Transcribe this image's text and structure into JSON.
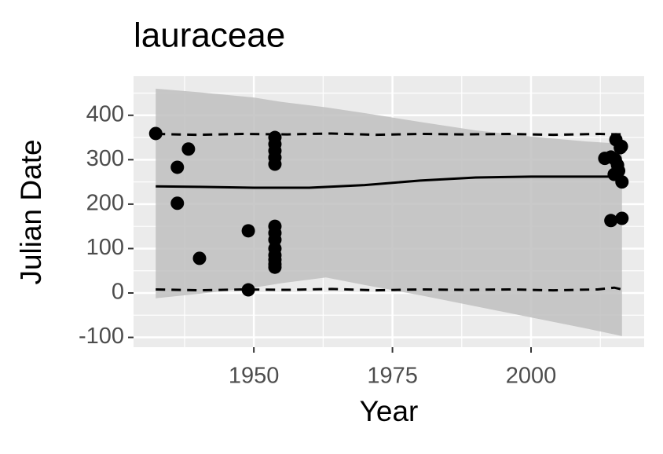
{
  "chart_data": {
    "type": "scatter",
    "title": "lauraceae",
    "x_label": "Year",
    "y_label": "Julian Date",
    "xlim": [
      1928.3,
      2020.4
    ],
    "ylim": [
      -122,
      488
    ],
    "xticks": [
      1950,
      1975,
      2000
    ],
    "yticks": [
      -100,
      0,
      100,
      200,
      300,
      400
    ],
    "xminorticks": [
      1937.5,
      1962.5,
      1987.5,
      2012.5
    ],
    "yminorticks": [
      -50,
      50,
      150,
      250,
      350,
      450
    ],
    "grid": true,
    "panel_color": "#ebebeb",
    "band": {
      "color": "#bfbfbf",
      "x": [
        1932.3,
        1940,
        1945,
        1950,
        1955,
        1963,
        1970,
        1980,
        1990,
        2000,
        2010,
        2016.4
      ],
      "lower": [
        -12,
        -2,
        5,
        12,
        22,
        35,
        18,
        -5,
        -30,
        -55,
        -80,
        -97
      ],
      "upper": [
        460,
        452,
        446,
        440,
        430,
        418,
        405,
        385,
        366,
        352,
        341,
        336
      ]
    },
    "lines": [
      {
        "color": "#000000",
        "dashed": false,
        "x": [
          1932.3,
          1940,
          1950,
          1960,
          1970,
          1980,
          1990,
          2000,
          2010,
          2016.4
        ],
        "values": [
          240,
          239,
          237,
          237,
          243,
          253,
          260,
          262,
          262,
          262
        ]
      },
      {
        "color": "#000000",
        "dashed": true,
        "x": [
          1932.3,
          1940,
          1948,
          1956,
          1964,
          1972,
          1980,
          1988,
          1996,
          2004,
          2012,
          2016.4
        ],
        "values": [
          358,
          356,
          358,
          357,
          359,
          356,
          358,
          357,
          358,
          356,
          358,
          357
        ]
      },
      {
        "color": "#000000",
        "dashed": true,
        "x": [
          1932.3,
          1940,
          1948,
          1956,
          1964,
          1972,
          1980,
          1988,
          1996,
          2004,
          2012,
          2015,
          2016.4
        ],
        "values": [
          8,
          6,
          8,
          7,
          9,
          6,
          8,
          7,
          8,
          6,
          8,
          12,
          8
        ]
      }
    ],
    "series": [
      {
        "color": "#000000",
        "x": [
          1932.3,
          1936.2,
          1936.2,
          1938.2,
          1940.2,
          1949,
          1949,
          1953.8,
          1953.8,
          1953.8,
          1953.8,
          1953.8,
          1953.8,
          1953.8,
          1953.8,
          1953.8,
          1953.8,
          1953.8,
          1953.8,
          1953.8,
          2013.3,
          2014.4,
          2015.3,
          2015.6,
          2015,
          2016.1,
          2016.4,
          2014.4,
          2016.4,
          2015.2,
          2016.3,
          2015.8
        ],
        "values": [
          359,
          283,
          202,
          324,
          78,
          140,
          7,
          350,
          335,
          320,
          305,
          290,
          150,
          135,
          120,
          100,
          85,
          75,
          65,
          58,
          303,
          306,
          345,
          288,
          267,
          327,
          250,
          163,
          168,
          300,
          330,
          275
        ]
      }
    ]
  }
}
